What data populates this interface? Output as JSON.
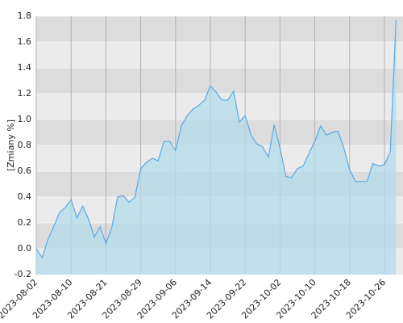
{
  "chart_data": {
    "type": "area",
    "y_label": "[Zmiany %]",
    "categories": [
      "2023-08-02",
      null,
      null,
      null,
      null,
      null,
      "2023-08-10",
      null,
      null,
      null,
      null,
      null,
      "2023-08-21",
      null,
      null,
      null,
      null,
      null,
      "2023-08-29",
      null,
      null,
      null,
      null,
      null,
      "2023-09-06",
      null,
      null,
      null,
      null,
      null,
      "2023-09-14",
      null,
      null,
      null,
      null,
      null,
      "2023-09-22",
      null,
      null,
      null,
      null,
      null,
      "2023-10-02",
      null,
      null,
      null,
      null,
      null,
      "2023-10-10",
      null,
      null,
      null,
      null,
      null,
      "2023-10-18",
      null,
      null,
      null,
      null,
      null,
      "2023-10-26",
      null,
      null
    ],
    "values": [
      0.0,
      -0.07,
      0.07,
      0.17,
      0.28,
      0.32,
      0.38,
      0.24,
      0.33,
      0.23,
      0.09,
      0.17,
      0.04,
      0.16,
      0.4,
      0.41,
      0.36,
      0.4,
      0.62,
      0.67,
      0.7,
      0.68,
      0.83,
      0.83,
      0.76,
      0.95,
      1.03,
      1.08,
      1.11,
      1.15,
      1.26,
      1.21,
      1.15,
      1.15,
      1.22,
      0.98,
      1.03,
      0.88,
      0.81,
      0.79,
      0.71,
      0.96,
      0.78,
      0.56,
      0.55,
      0.62,
      0.64,
      0.74,
      0.83,
      0.95,
      0.88,
      0.9,
      0.91,
      0.78,
      0.61,
      0.52,
      0.52,
      0.52,
      0.66,
      0.64,
      0.65,
      0.75,
      1.77
    ],
    "color": "#5aa9e6",
    "fill": "#b3dcec",
    "ylim": [
      -0.2,
      1.8
    ],
    "yticks": [
      -0.2,
      {
        "value": 0,
        "label": "0.0"
      },
      0.2,
      0.4,
      0.6,
      0.8,
      {
        "value": 1,
        "label": "1.0"
      },
      1.2,
      1.4,
      1.6,
      1.8
    ],
    "grid": true
  }
}
